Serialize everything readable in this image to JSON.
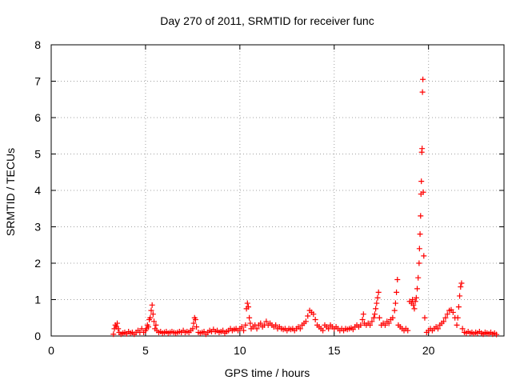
{
  "chart_data": {
    "type": "scatter",
    "title": "Day 270 of 2011, SRMTID for receiver func",
    "xlabel": "GPS time / hours",
    "ylabel": "SRMTID / TECUs",
    "xlim": [
      0,
      24
    ],
    "ylim": [
      0,
      8
    ],
    "xticks": [
      0,
      5,
      10,
      15,
      20
    ],
    "xtick_labels": [
      "0",
      "5",
      "10",
      "15",
      "20"
    ],
    "yticks": [
      0,
      1,
      2,
      3,
      4,
      5,
      6,
      7,
      8
    ],
    "ytick_labels": [
      "0",
      "1",
      "2",
      "3",
      "4",
      "5",
      "6",
      "7",
      "8"
    ],
    "grid": true,
    "marker": "+",
    "color": "#ff0000",
    "series": [
      {
        "name": "SRMTID",
        "points": [
          [
            3.3,
            0.05
          ],
          [
            3.35,
            0.2
          ],
          [
            3.4,
            0.3
          ],
          [
            3.45,
            0.25
          ],
          [
            3.5,
            0.35
          ],
          [
            3.55,
            0.2
          ],
          [
            3.6,
            0.1
          ],
          [
            3.7,
            0.05
          ],
          [
            3.8,
            0.08
          ],
          [
            3.9,
            0.1
          ],
          [
            4.0,
            0.06
          ],
          [
            4.1,
            0.12
          ],
          [
            4.2,
            0.08
          ],
          [
            4.3,
            0.1
          ],
          [
            4.4,
            0.05
          ],
          [
            4.5,
            0.1
          ],
          [
            4.6,
            0.15
          ],
          [
            4.7,
            0.1
          ],
          [
            4.8,
            0.2
          ],
          [
            4.9,
            0.1
          ],
          [
            5.0,
            0.15
          ],
          [
            5.05,
            0.2
          ],
          [
            5.1,
            0.3
          ],
          [
            5.15,
            0.25
          ],
          [
            5.2,
            0.45
          ],
          [
            5.25,
            0.5
          ],
          [
            5.3,
            0.7
          ],
          [
            5.35,
            0.85
          ],
          [
            5.4,
            0.6
          ],
          [
            5.45,
            0.4
          ],
          [
            5.5,
            0.2
          ],
          [
            5.55,
            0.3
          ],
          [
            5.6,
            0.15
          ],
          [
            5.7,
            0.1
          ],
          [
            5.8,
            0.12
          ],
          [
            5.9,
            0.08
          ],
          [
            6.0,
            0.1
          ],
          [
            6.1,
            0.12
          ],
          [
            6.2,
            0.08
          ],
          [
            6.3,
            0.1
          ],
          [
            6.4,
            0.12
          ],
          [
            6.5,
            0.1
          ],
          [
            6.6,
            0.08
          ],
          [
            6.7,
            0.1
          ],
          [
            6.8,
            0.12
          ],
          [
            6.9,
            0.1
          ],
          [
            7.0,
            0.15
          ],
          [
            7.1,
            0.1
          ],
          [
            7.2,
            0.12
          ],
          [
            7.3,
            0.1
          ],
          [
            7.4,
            0.15
          ],
          [
            7.5,
            0.2
          ],
          [
            7.55,
            0.35
          ],
          [
            7.6,
            0.5
          ],
          [
            7.65,
            0.45
          ],
          [
            7.7,
            0.25
          ],
          [
            7.8,
            0.1
          ],
          [
            7.9,
            0.08
          ],
          [
            8.0,
            0.1
          ],
          [
            8.1,
            0.12
          ],
          [
            8.2,
            0.05
          ],
          [
            8.3,
            0.1
          ],
          [
            8.4,
            0.15
          ],
          [
            8.5,
            0.12
          ],
          [
            8.6,
            0.18
          ],
          [
            8.7,
            0.12
          ],
          [
            8.8,
            0.15
          ],
          [
            8.9,
            0.1
          ],
          [
            9.0,
            0.12
          ],
          [
            9.1,
            0.15
          ],
          [
            9.2,
            0.08
          ],
          [
            9.3,
            0.12
          ],
          [
            9.4,
            0.15
          ],
          [
            9.5,
            0.2
          ],
          [
            9.6,
            0.15
          ],
          [
            9.7,
            0.18
          ],
          [
            9.8,
            0.2
          ],
          [
            9.9,
            0.15
          ],
          [
            10.0,
            0.2
          ],
          [
            10.1,
            0.25
          ],
          [
            10.2,
            0.15
          ],
          [
            10.3,
            0.3
          ],
          [
            10.35,
            0.75
          ],
          [
            10.4,
            0.9
          ],
          [
            10.45,
            0.8
          ],
          [
            10.5,
            0.5
          ],
          [
            10.55,
            0.35
          ],
          [
            10.6,
            0.2
          ],
          [
            10.7,
            0.25
          ],
          [
            10.8,
            0.3
          ],
          [
            10.9,
            0.2
          ],
          [
            11.0,
            0.3
          ],
          [
            11.1,
            0.35
          ],
          [
            11.2,
            0.25
          ],
          [
            11.3,
            0.3
          ],
          [
            11.4,
            0.4
          ],
          [
            11.5,
            0.3
          ],
          [
            11.6,
            0.35
          ],
          [
            11.7,
            0.3
          ],
          [
            11.8,
            0.25
          ],
          [
            11.9,
            0.3
          ],
          [
            12.0,
            0.2
          ],
          [
            12.1,
            0.25
          ],
          [
            12.2,
            0.2
          ],
          [
            12.3,
            0.18
          ],
          [
            12.4,
            0.2
          ],
          [
            12.5,
            0.15
          ],
          [
            12.6,
            0.2
          ],
          [
            12.7,
            0.18
          ],
          [
            12.8,
            0.2
          ],
          [
            12.9,
            0.15
          ],
          [
            13.0,
            0.2
          ],
          [
            13.1,
            0.25
          ],
          [
            13.2,
            0.2
          ],
          [
            13.3,
            0.3
          ],
          [
            13.4,
            0.35
          ],
          [
            13.5,
            0.4
          ],
          [
            13.6,
            0.55
          ],
          [
            13.7,
            0.7
          ],
          [
            13.8,
            0.65
          ],
          [
            13.9,
            0.6
          ],
          [
            14.0,
            0.45
          ],
          [
            14.1,
            0.3
          ],
          [
            14.2,
            0.25
          ],
          [
            14.3,
            0.2
          ],
          [
            14.4,
            0.15
          ],
          [
            14.5,
            0.3
          ],
          [
            14.6,
            0.25
          ],
          [
            14.7,
            0.2
          ],
          [
            14.8,
            0.3
          ],
          [
            14.9,
            0.25
          ],
          [
            15.0,
            0.2
          ],
          [
            15.1,
            0.25
          ],
          [
            15.2,
            0.2
          ],
          [
            15.3,
            0.15
          ],
          [
            15.4,
            0.2
          ],
          [
            15.5,
            0.15
          ],
          [
            15.6,
            0.2
          ],
          [
            15.7,
            0.18
          ],
          [
            15.8,
            0.2
          ],
          [
            15.9,
            0.22
          ],
          [
            16.0,
            0.18
          ],
          [
            16.1,
            0.25
          ],
          [
            16.2,
            0.3
          ],
          [
            16.3,
            0.25
          ],
          [
            16.4,
            0.3
          ],
          [
            16.5,
            0.45
          ],
          [
            16.55,
            0.6
          ],
          [
            16.6,
            0.35
          ],
          [
            16.7,
            0.3
          ],
          [
            16.8,
            0.35
          ],
          [
            16.9,
            0.3
          ],
          [
            17.0,
            0.4
          ],
          [
            17.1,
            0.5
          ],
          [
            17.15,
            0.6
          ],
          [
            17.2,
            0.75
          ],
          [
            17.25,
            0.9
          ],
          [
            17.3,
            1.05
          ],
          [
            17.35,
            1.2
          ],
          [
            17.4,
            0.5
          ],
          [
            17.5,
            0.3
          ],
          [
            17.6,
            0.35
          ],
          [
            17.7,
            0.3
          ],
          [
            17.8,
            0.4
          ],
          [
            17.9,
            0.35
          ],
          [
            18.0,
            0.45
          ],
          [
            18.1,
            0.5
          ],
          [
            18.2,
            0.7
          ],
          [
            18.25,
            0.9
          ],
          [
            18.3,
            1.2
          ],
          [
            18.35,
            1.55
          ],
          [
            18.4,
            0.3
          ],
          [
            18.5,
            0.25
          ],
          [
            18.6,
            0.2
          ],
          [
            18.7,
            0.15
          ],
          [
            18.8,
            0.2
          ],
          [
            18.9,
            0.15
          ],
          [
            19.0,
            0.95
          ],
          [
            19.1,
            0.9
          ],
          [
            19.15,
            1.0
          ],
          [
            19.2,
            0.85
          ],
          [
            19.25,
            0.75
          ],
          [
            19.3,
            0.95
          ],
          [
            19.35,
            1.05
          ],
          [
            19.4,
            1.3
          ],
          [
            19.45,
            1.6
          ],
          [
            19.5,
            2.0
          ],
          [
            19.52,
            2.4
          ],
          [
            19.55,
            2.8
          ],
          [
            19.58,
            3.3
          ],
          [
            19.6,
            3.9
          ],
          [
            19.62,
            4.25
          ],
          [
            19.64,
            5.05
          ],
          [
            19.66,
            5.15
          ],
          [
            19.68,
            6.7
          ],
          [
            19.7,
            7.05
          ],
          [
            19.72,
            3.95
          ],
          [
            19.75,
            2.2
          ],
          [
            19.8,
            0.5
          ],
          [
            19.9,
            0.1
          ],
          [
            20.0,
            0.15
          ],
          [
            20.1,
            0.2
          ],
          [
            20.2,
            0.15
          ],
          [
            20.3,
            0.2
          ],
          [
            20.4,
            0.25
          ],
          [
            20.5,
            0.2
          ],
          [
            20.6,
            0.3
          ],
          [
            20.7,
            0.35
          ],
          [
            20.8,
            0.4
          ],
          [
            20.9,
            0.5
          ],
          [
            21.0,
            0.6
          ],
          [
            21.1,
            0.7
          ],
          [
            21.2,
            0.72
          ],
          [
            21.3,
            0.65
          ],
          [
            21.4,
            0.5
          ],
          [
            21.5,
            0.3
          ],
          [
            21.55,
            0.5
          ],
          [
            21.6,
            0.8
          ],
          [
            21.65,
            1.1
          ],
          [
            21.7,
            1.35
          ],
          [
            21.75,
            1.45
          ],
          [
            21.8,
            0.2
          ],
          [
            21.9,
            0.1
          ],
          [
            22.0,
            0.08
          ],
          [
            22.1,
            0.12
          ],
          [
            22.2,
            0.08
          ],
          [
            22.3,
            0.1
          ],
          [
            22.4,
            0.06
          ],
          [
            22.5,
            0.1
          ],
          [
            22.6,
            0.08
          ],
          [
            22.7,
            0.12
          ],
          [
            22.8,
            0.08
          ],
          [
            22.9,
            0.05
          ],
          [
            23.0,
            0.1
          ],
          [
            23.1,
            0.08
          ],
          [
            23.2,
            0.06
          ],
          [
            23.3,
            0.1
          ],
          [
            23.4,
            0.05
          ],
          [
            23.5,
            0.08
          ],
          [
            23.6,
            0.04
          ]
        ]
      }
    ]
  }
}
